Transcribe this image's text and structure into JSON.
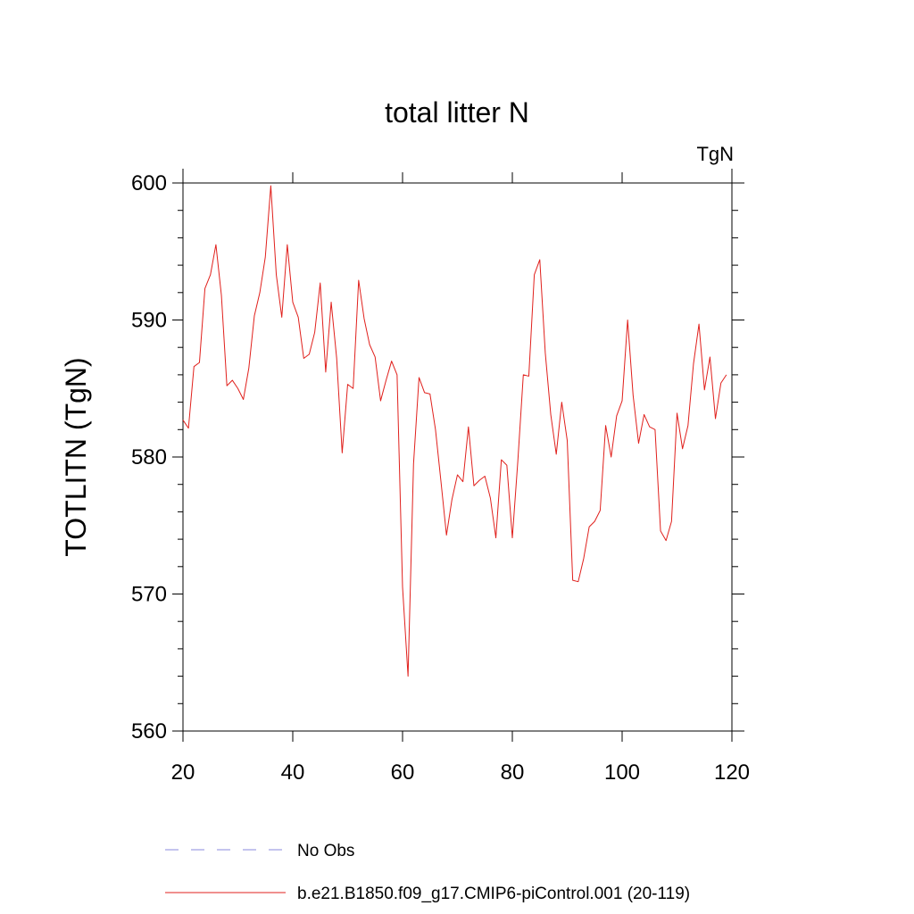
{
  "chart_data": {
    "type": "line",
    "title": "total litter N",
    "units_label": "TgN",
    "ylabel": "TOTLITN  (TgN)",
    "xlabel": "",
    "xlim": [
      20,
      120
    ],
    "ylim": [
      560,
      600
    ],
    "x_ticks": [
      20,
      40,
      60,
      80,
      100,
      120
    ],
    "y_ticks": [
      560,
      570,
      580,
      590,
      600
    ],
    "grid": false,
    "legend_position": "bottom",
    "colors": {
      "model": "#e0201c",
      "obs": "#8a8add"
    },
    "legend": [
      {
        "label": "No Obs",
        "style": "dashed",
        "color": "#8a8add"
      },
      {
        "label": "b.e21.B1850.f09_g17.CMIP6-piControl.001 (20-119)",
        "style": "solid",
        "color": "#e0201c"
      }
    ],
    "series": [
      {
        "name": "b.e21.B1850.f09_g17.CMIP6-piControl.001 (20-119)",
        "x": [
          20,
          21,
          22,
          23,
          24,
          25,
          26,
          27,
          28,
          29,
          30,
          31,
          32,
          33,
          34,
          35,
          36,
          37,
          38,
          39,
          40,
          41,
          42,
          43,
          44,
          45,
          46,
          47,
          48,
          49,
          50,
          51,
          52,
          53,
          54,
          55,
          56,
          57,
          58,
          59,
          60,
          61,
          62,
          63,
          64,
          65,
          66,
          67,
          68,
          69,
          70,
          71,
          72,
          73,
          74,
          75,
          76,
          77,
          78,
          79,
          80,
          81,
          82,
          83,
          84,
          85,
          86,
          87,
          88,
          89,
          90,
          91,
          92,
          93,
          94,
          95,
          96,
          97,
          98,
          99,
          100,
          101,
          102,
          103,
          104,
          105,
          106,
          107,
          108,
          109,
          110,
          111,
          112,
          113,
          114,
          115,
          116,
          117,
          118,
          119
        ],
        "values": [
          582.7,
          582.1,
          586.6,
          586.9,
          592.3,
          593.3,
          595.5,
          591.8,
          585.2,
          585.6,
          585.0,
          584.2,
          586.5,
          590.3,
          592.0,
          594.6,
          599.8,
          593.3,
          590.2,
          595.5,
          591.3,
          590.2,
          587.2,
          587.5,
          589.1,
          592.7,
          586.2,
          591.3,
          587.2,
          580.3,
          585.3,
          585.0,
          592.9,
          590.1,
          588.2,
          587.3,
          584.1,
          585.6,
          587.0,
          586.0,
          570.5,
          564.0,
          579.5,
          585.8,
          584.7,
          584.6,
          582.0,
          578.2,
          574.3,
          576.9,
          578.7,
          578.2,
          582.2,
          577.9,
          578.3,
          578.6,
          577.0,
          574.1,
          579.8,
          579.4,
          574.1,
          579.7,
          586.0,
          585.9,
          593.3,
          594.4,
          587.6,
          583.1,
          580.2,
          584.0,
          581.2,
          571.0,
          570.9,
          572.6,
          574.9,
          575.3,
          576.1,
          582.3,
          580.0,
          583.0,
          584.1,
          590.0,
          584.5,
          581.0,
          583.1,
          582.2,
          582.0,
          574.6,
          573.9,
          575.3,
          583.2,
          580.6,
          582.3,
          586.8,
          589.7,
          584.9,
          587.3,
          582.8,
          585.4,
          586.0
        ]
      }
    ]
  }
}
